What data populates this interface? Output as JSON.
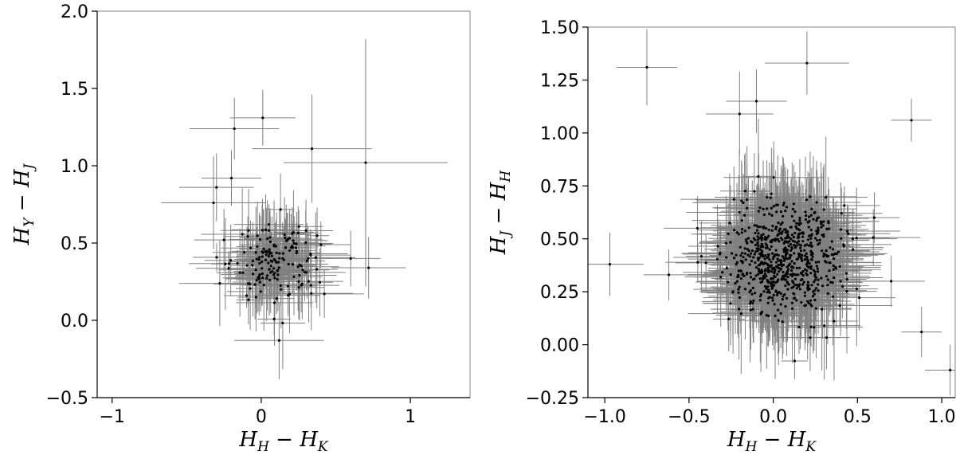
{
  "chart_data": [
    {
      "type": "scatter",
      "title": "",
      "xlabel": {
        "main": "H",
        "sub": "H",
        "op": " − ",
        "main2": "H",
        "sub2": "K"
      },
      "ylabel": {
        "main": "H",
        "sub": "Y",
        "op": " − ",
        "main2": "H",
        "sub2": "J"
      },
      "xlim": [
        -1.1,
        1.4
      ],
      "ylim": [
        -0.5,
        2.0
      ],
      "xticks": [
        -1,
        0,
        1
      ],
      "xtick_labels": [
        "−1",
        "0",
        "1"
      ],
      "yticks": [
        -0.5,
        0.0,
        0.5,
        1.0,
        1.5,
        2.0
      ],
      "ytick_labels": [
        "−0.5",
        "0.0",
        "0.5",
        "1.0",
        "1.5",
        "2.0"
      ],
      "grid": false,
      "point_color": "#000000",
      "errorbar_color": "#808080",
      "points": [
        {
          "x": 0.01,
          "y": 1.31,
          "xerr": 0.22,
          "yerr": 0.18
        },
        {
          "x": -0.18,
          "y": 1.24,
          "xerr": 0.3,
          "yerr": 0.2
        },
        {
          "x": 0.34,
          "y": 1.11,
          "xerr": 0.4,
          "yerr": 0.35
        },
        {
          "x": 0.7,
          "y": 1.02,
          "xerr": 0.55,
          "yerr": 0.8
        },
        {
          "x": -0.3,
          "y": 0.86,
          "xerr": 0.25,
          "yerr": 0.22
        },
        {
          "x": -0.2,
          "y": 0.92,
          "xerr": 0.2,
          "yerr": 0.18
        },
        {
          "x": -0.32,
          "y": 0.76,
          "xerr": 0.35,
          "yerr": 0.3
        },
        {
          "x": 0.72,
          "y": 0.34,
          "xerr": 0.25,
          "yerr": 0.2
        },
        {
          "x": 0.6,
          "y": 0.4,
          "xerr": 0.2,
          "yerr": 0.18
        },
        {
          "x": 0.12,
          "y": -0.13,
          "xerr": 0.3,
          "yerr": 0.25
        },
        {
          "x": -0.25,
          "y": 0.52,
          "xerr": 0.2,
          "yerr": 0.2
        },
        {
          "x": 0.3,
          "y": 0.58,
          "xerr": 0.18,
          "yerr": 0.2
        },
        {
          "x": 0.4,
          "y": 0.49,
          "xerr": 0.2,
          "yerr": 0.15
        }
      ],
      "cluster": {
        "count": 160,
        "x_center": 0.08,
        "y_center": 0.38,
        "x_spread": 0.14,
        "y_spread": 0.13,
        "xerr_range": [
          0.08,
          0.28
        ],
        "yerr_range": [
          0.08,
          0.3
        ]
      }
    },
    {
      "type": "scatter",
      "title": "",
      "xlabel": {
        "main": "H",
        "sub": "H",
        "op": " − ",
        "main2": "H",
        "sub2": "K"
      },
      "ylabel": {
        "main": "H",
        "sub": "J",
        "op": " − ",
        "main2": "H",
        "sub2": "H"
      },
      "xlim": [
        -1.1,
        1.08
      ],
      "ylim": [
        -0.25,
        1.5
      ],
      "xticks": [
        -1.0,
        -0.5,
        0.0,
        0.5,
        1.0
      ],
      "xtick_labels": [
        "−1.0",
        "−0.5",
        "0.0",
        "0.5",
        "1.0"
      ],
      "yticks": [
        -0.25,
        0.0,
        0.25,
        0.5,
        0.75,
        1.0,
        1.25,
        1.5
      ],
      "ytick_labels": [
        "−0.25",
        "0.00",
        "0.25",
        "0.50",
        "0.75",
        "1.00",
        "1.25",
        "1.50"
      ],
      "grid": false,
      "point_color": "#000000",
      "errorbar_color": "#808080",
      "points": [
        {
          "x": -0.75,
          "y": 1.31,
          "xerr": 0.18,
          "yerr": 0.18
        },
        {
          "x": 0.82,
          "y": 1.06,
          "xerr": 0.12,
          "yerr": 0.1
        },
        {
          "x": -0.97,
          "y": 0.38,
          "xerr": 0.2,
          "yerr": 0.15
        },
        {
          "x": -0.62,
          "y": 0.33,
          "xerr": 0.15,
          "yerr": 0.12
        },
        {
          "x": 1.05,
          "y": -0.12,
          "xerr": 0.15,
          "yerr": 0.12
        },
        {
          "x": 0.88,
          "y": 0.06,
          "xerr": 0.12,
          "yerr": 0.12
        },
        {
          "x": -0.2,
          "y": 1.09,
          "xerr": 0.2,
          "yerr": 0.2
        },
        {
          "x": 0.2,
          "y": 1.33,
          "xerr": 0.25,
          "yerr": 0.15
        },
        {
          "x": -0.1,
          "y": 1.15,
          "xerr": 0.18,
          "yerr": 0.15
        },
        {
          "x": 0.6,
          "y": 0.6,
          "xerr": 0.15,
          "yerr": 0.12
        },
        {
          "x": -0.45,
          "y": 0.55,
          "xerr": 0.2,
          "yerr": 0.15
        },
        {
          "x": 0.7,
          "y": 0.3,
          "xerr": 0.2,
          "yerr": 0.12
        }
      ],
      "cluster": {
        "count": 750,
        "x_center": 0.07,
        "y_center": 0.4,
        "x_spread": 0.16,
        "y_spread": 0.13,
        "xerr_range": [
          0.08,
          0.32
        ],
        "yerr_range": [
          0.08,
          0.3
        ]
      }
    }
  ]
}
